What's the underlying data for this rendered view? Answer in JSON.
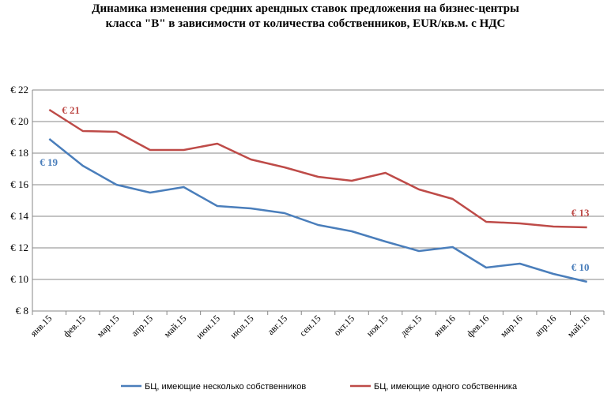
{
  "chart_data": {
    "type": "line",
    "title_lines": [
      "Динамика изменения средних арендных ставок предложения на бизнес-центры",
      "класса \"B\" в зависимости от количества собственников, EUR/кв.м. с НДС"
    ],
    "categories": [
      "янв.15",
      "фев.15",
      "мар.15",
      "апр.15",
      "май.15",
      "июн.15",
      "июл.15",
      "авг.15",
      "сен.15",
      "окт.15",
      "ноя.15",
      "дек.15",
      "янв.16",
      "фев.16",
      "мар.16",
      "апр.16",
      "май.16"
    ],
    "ylim": [
      8,
      22
    ],
    "yticks": [
      8,
      10,
      12,
      14,
      16,
      18,
      20,
      22
    ],
    "ytick_labels": [
      "€ 8",
      "€ 10",
      "€ 12",
      "€ 14",
      "€ 16",
      "€ 18",
      "€ 20",
      "€ 22"
    ],
    "grid": true,
    "legend_position": "bottom",
    "series": [
      {
        "name": "БЦ, имеющие несколько собственников",
        "color": "#4a7ebb",
        "values": [
          18.9,
          17.2,
          16.0,
          15.5,
          15.85,
          14.65,
          14.5,
          14.2,
          13.45,
          13.05,
          12.4,
          11.8,
          12.05,
          10.75,
          11.0,
          10.35,
          9.85
        ],
        "data_labels": [
          {
            "index": 0,
            "text": "€ 19"
          },
          {
            "index": 16,
            "text": "€ 10"
          }
        ]
      },
      {
        "name": "БЦ, имеющие одного собственника",
        "color": "#be4b48",
        "values": [
          20.75,
          19.4,
          19.35,
          18.2,
          18.2,
          18.6,
          17.6,
          17.1,
          16.5,
          16.25,
          16.75,
          15.7,
          15.1,
          13.65,
          13.55,
          13.35,
          13.3
        ],
        "data_labels": [
          {
            "index": 0,
            "text": "€ 21"
          },
          {
            "index": 16,
            "text": "€ 13"
          }
        ]
      }
    ]
  }
}
